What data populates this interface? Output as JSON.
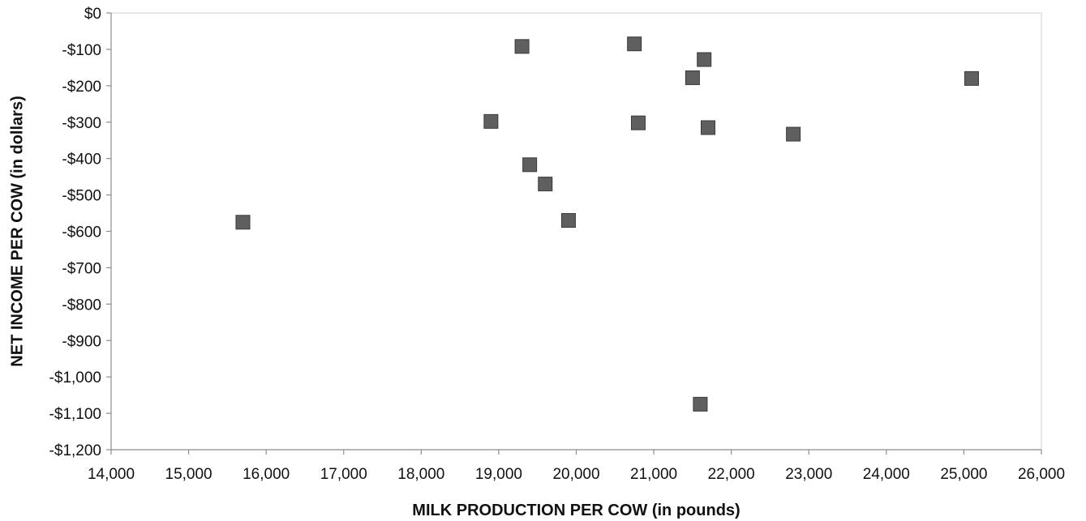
{
  "chart_data": {
    "type": "scatter",
    "title": "",
    "xlabel": "MILK PRODUCTION PER COW (in pounds)",
    "ylabel": "NET INCOME PER COW (in dollars)",
    "xlim": [
      14000,
      26000
    ],
    "ylim": [
      -1200,
      0
    ],
    "x_ticks": [
      14000,
      15000,
      16000,
      17000,
      18000,
      19000,
      20000,
      21000,
      22000,
      23000,
      24000,
      25000,
      26000
    ],
    "x_tick_labels": [
      "14,000",
      "15,000",
      "16,000",
      "17,000",
      "18,000",
      "19,000",
      "20,000",
      "21,000",
      "22,000",
      "23,000",
      "24,000",
      "25,000",
      "26,000"
    ],
    "y_ticks": [
      0,
      -100,
      -200,
      -300,
      -400,
      -500,
      -600,
      -700,
      -800,
      -900,
      -1000,
      -1100,
      -1200
    ],
    "y_tick_labels": [
      "$0",
      "-$100",
      "-$200",
      "-$300",
      "-$400",
      "-$500",
      "-$600",
      "-$700",
      "-$800",
      "-$900",
      "-$1,000",
      "-$1,100",
      "-$1,200"
    ],
    "grid": false,
    "legend": "none",
    "marker": "square",
    "marker_color": "#5f5f5f",
    "points": [
      {
        "x": 15700,
        "y": -575
      },
      {
        "x": 18900,
        "y": -298
      },
      {
        "x": 19300,
        "y": -92
      },
      {
        "x": 19400,
        "y": -417
      },
      {
        "x": 19600,
        "y": -470
      },
      {
        "x": 19900,
        "y": -570
      },
      {
        "x": 20750,
        "y": -85
      },
      {
        "x": 20800,
        "y": -302
      },
      {
        "x": 21500,
        "y": -178
      },
      {
        "x": 21600,
        "y": -1075
      },
      {
        "x": 21650,
        "y": -128
      },
      {
        "x": 21700,
        "y": -315
      },
      {
        "x": 22800,
        "y": -333
      },
      {
        "x": 25100,
        "y": -180
      }
    ]
  }
}
